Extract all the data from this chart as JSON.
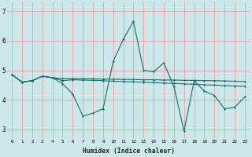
{
  "xlabel": "Humidex (Indice chaleur)",
  "bg_color": "#cce8e8",
  "grid_color": "#e8a0a0",
  "line_color": "#1a6b6b",
  "xlim": [
    -0.5,
    23.5
  ],
  "ylim": [
    2.7,
    7.3
  ],
  "yticks": [
    3,
    4,
    5,
    6,
    7
  ],
  "xticks": [
    0,
    1,
    2,
    3,
    4,
    5,
    6,
    7,
    8,
    9,
    10,
    11,
    12,
    13,
    14,
    15,
    16,
    17,
    18,
    19,
    20,
    21,
    22,
    23
  ],
  "series": [
    [
      4.85,
      4.6,
      4.65,
      4.8,
      4.75,
      4.55,
      4.2,
      3.45,
      3.55,
      3.7,
      5.3,
      6.05,
      6.65,
      5.0,
      4.95,
      5.25,
      4.45,
      2.95,
      4.65,
      4.3,
      4.15,
      3.7,
      3.75,
      4.1
    ],
    [
      4.85,
      4.6,
      4.65,
      4.8,
      4.75,
      4.65,
      4.68,
      4.67,
      4.66,
      4.65,
      4.63,
      4.62,
      4.61,
      4.6,
      4.58,
      4.57,
      4.56,
      4.54,
      4.53,
      4.51,
      4.5,
      4.48,
      4.47,
      4.46
    ],
    [
      4.85,
      4.6,
      4.65,
      4.8,
      4.75,
      4.72,
      4.72,
      4.71,
      4.71,
      4.7,
      4.7,
      4.69,
      4.69,
      4.68,
      4.68,
      4.67,
      4.67,
      4.66,
      4.66,
      4.65,
      4.65,
      4.64,
      4.63,
      4.62
    ]
  ]
}
